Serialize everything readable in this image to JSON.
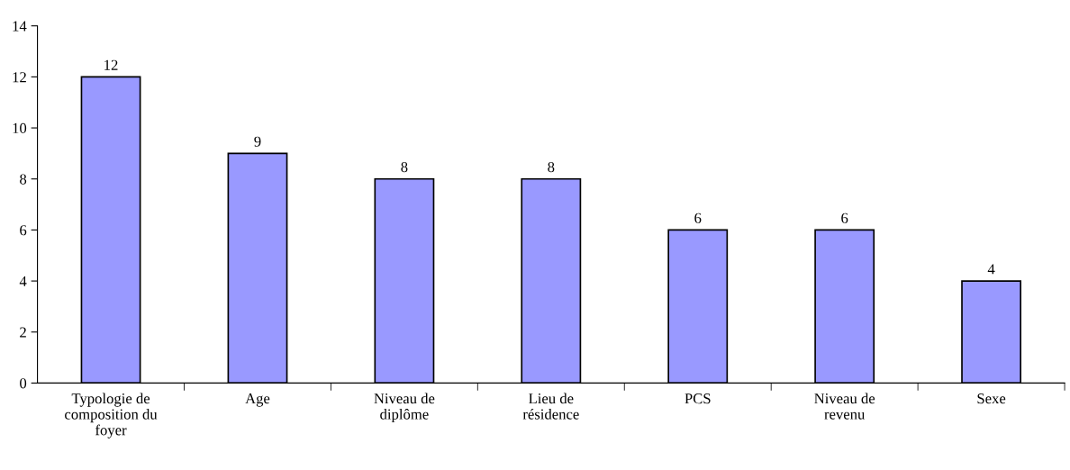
{
  "chart_data": {
    "type": "bar",
    "categories": [
      "Typologie de\ncomposition du\nfoyer",
      "Age",
      "Niveau de\ndiplôme",
      "Lieu de\nrésidence",
      "PCS",
      "Niveau de\nrevenu",
      "Sexe"
    ],
    "values": [
      12,
      9,
      8,
      8,
      6,
      6,
      4
    ],
    "color": "#9999ff",
    "ylim": [
      0,
      14
    ],
    "yticks": [
      0,
      2,
      4,
      6,
      8,
      10,
      12,
      14
    ],
    "data_labels": true,
    "grid": false,
    "legend": false
  }
}
